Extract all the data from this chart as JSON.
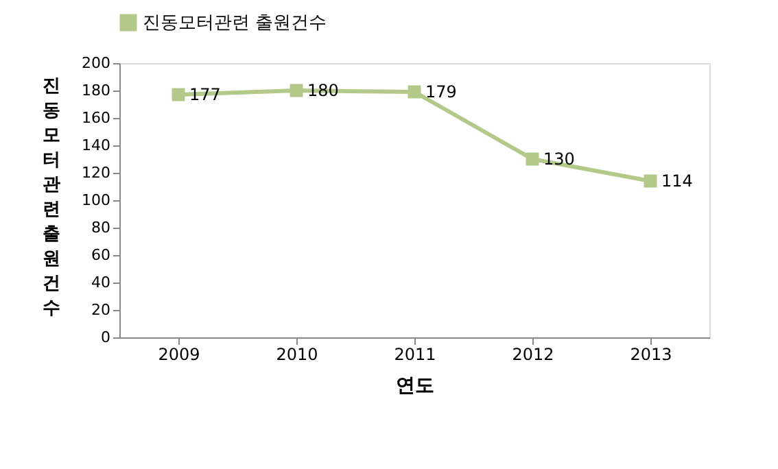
{
  "chart_data": {
    "type": "line",
    "xlabel": "연도",
    "ylabel": "진동모터관련 출원건수",
    "categories": [
      "2009",
      "2010",
      "2011",
      "2012",
      "2013"
    ],
    "series": [
      {
        "name": "진동모터관련 출원건수",
        "color": "#b3c98a",
        "values": [
          177,
          180,
          179,
          130,
          114
        ]
      }
    ],
    "ylim": [
      0,
      200
    ],
    "yticks": [
      0,
      20,
      40,
      60,
      80,
      100,
      120,
      140,
      160,
      180,
      200
    ],
    "grid": false,
    "legend": "top",
    "marker": "square",
    "line_style": "solid",
    "data_labels": true
  }
}
